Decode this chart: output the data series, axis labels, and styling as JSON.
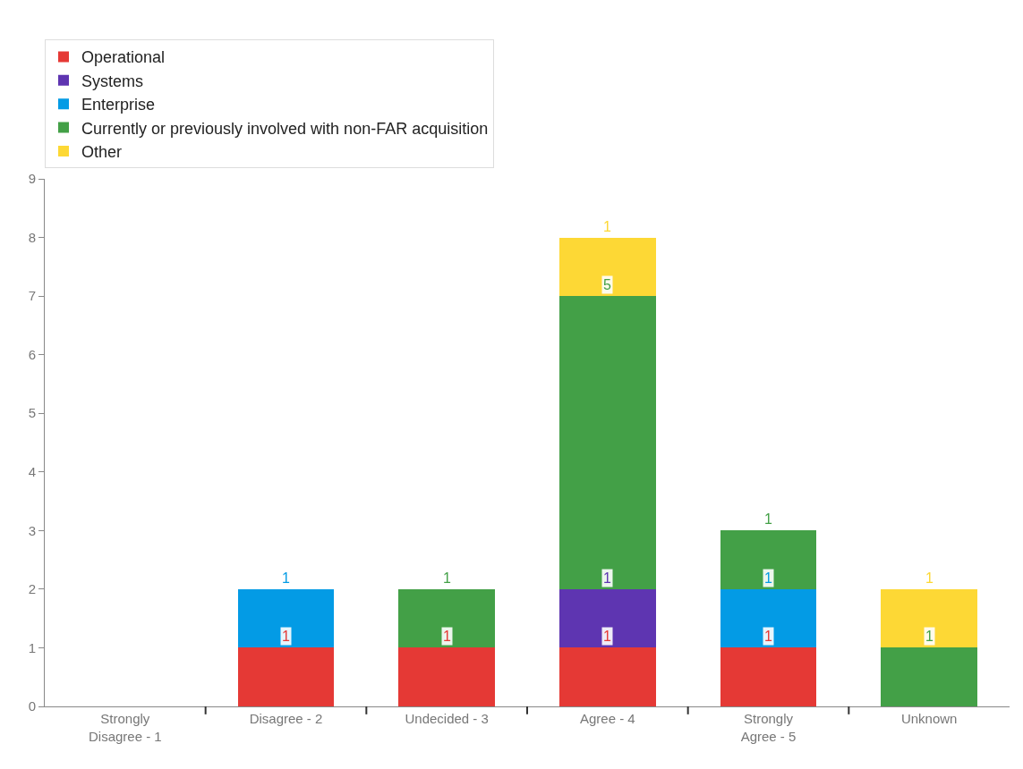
{
  "chart_data": {
    "type": "bar",
    "stacked": true,
    "data_labels": true,
    "legend": "top left",
    "categories": [
      "Strongly Disagree - 1",
      "Disagree - 2",
      "Undecided - 3",
      "Agree - 4",
      "Strongly Agree - 5",
      "Unknown"
    ],
    "ylim": [
      0,
      9
    ],
    "yticks": [
      0,
      1,
      2,
      3,
      4,
      5,
      6,
      7,
      8,
      9
    ],
    "series": [
      {
        "name": "Operational",
        "color": "#e53935",
        "values": [
          null,
          1,
          1,
          1,
          1,
          null
        ]
      },
      {
        "name": "Systems",
        "color": "#5e35b1",
        "values": [
          null,
          null,
          null,
          1,
          null,
          null
        ]
      },
      {
        "name": "Enterprise",
        "color": "#039be5",
        "values": [
          null,
          1,
          null,
          null,
          1,
          null
        ]
      },
      {
        "name": "Currently or previously involved with non-FAR acquisition",
        "color": "#43a047",
        "values": [
          null,
          null,
          1,
          5,
          1,
          1
        ]
      },
      {
        "name": "Other",
        "color": "#fdd835",
        "values": [
          null,
          null,
          null,
          1,
          null,
          1
        ]
      }
    ]
  }
}
